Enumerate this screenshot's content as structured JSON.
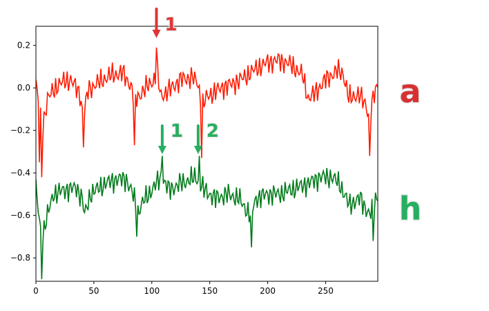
{
  "chart_data": {
    "type": "line",
    "title": "",
    "xlabel": "",
    "ylabel": "",
    "xlim": [
      0,
      295
    ],
    "ylim": [
      -0.91,
      0.29
    ],
    "xticks": [
      0,
      50,
      100,
      150,
      200,
      250
    ],
    "xtick_labels": [
      "0",
      "50",
      "100",
      "150",
      "200",
      "250"
    ],
    "yticks": [
      -0.8,
      -0.6,
      -0.4,
      -0.2,
      0.0,
      0.2
    ],
    "ytick_labels": [
      "−0.8",
      "−0.6",
      "−0.4",
      "−0.2",
      "0.0",
      "0.2"
    ],
    "grid": false,
    "legend": "none",
    "series": [
      {
        "color": "#ff1a00",
        "baseline": [
          [
            0,
            0.02
          ],
          [
            3,
            -0.1
          ],
          [
            6,
            -0.18
          ],
          [
            10,
            -0.05
          ],
          [
            20,
            0.02
          ],
          [
            30,
            0.04
          ],
          [
            38,
            -0.03
          ],
          [
            41,
            -0.14
          ],
          [
            45,
            -0.01
          ],
          [
            55,
            0.03
          ],
          [
            65,
            0.06
          ],
          [
            75,
            0.07
          ],
          [
            82,
            0.01
          ],
          [
            85,
            -0.06
          ],
          [
            90,
            -0.03
          ],
          [
            100,
            0.03
          ],
          [
            105,
            0.05
          ],
          [
            108,
            -0.04
          ],
          [
            115,
            -0.01
          ],
          [
            125,
            0.04
          ],
          [
            135,
            0.05
          ],
          [
            140,
            0.02
          ],
          [
            143,
            -0.09
          ],
          [
            148,
            -0.04
          ],
          [
            160,
            0.0
          ],
          [
            170,
            0.02
          ],
          [
            180,
            0.05
          ],
          [
            190,
            0.09
          ],
          [
            200,
            0.12
          ],
          [
            210,
            0.13
          ],
          [
            220,
            0.11
          ],
          [
            230,
            0.06
          ],
          [
            235,
            -0.05
          ],
          [
            240,
            -0.03
          ],
          [
            250,
            0.04
          ],
          [
            260,
            0.08
          ],
          [
            265,
            0.07
          ],
          [
            270,
            -0.05
          ],
          [
            278,
            -0.03
          ],
          [
            285,
            -0.08
          ],
          [
            288,
            -0.15
          ],
          [
            291,
            -0.05
          ],
          [
            295,
            0.02
          ]
        ],
        "peaks": [
          [
            3,
            -0.35
          ],
          [
            5,
            -0.42
          ],
          [
            41,
            -0.28
          ],
          [
            85,
            -0.27
          ],
          [
            104,
            0.19
          ],
          [
            143,
            -0.33
          ],
          [
            288,
            -0.32
          ]
        ],
        "amplitude": 0.065
      },
      {
        "color": "#007a1a",
        "baseline": [
          [
            0,
            -0.48
          ],
          [
            3,
            -0.62
          ],
          [
            5,
            -0.72
          ],
          [
            8,
            -0.64
          ],
          [
            15,
            -0.5
          ],
          [
            25,
            -0.48
          ],
          [
            35,
            -0.47
          ],
          [
            40,
            -0.52
          ],
          [
            42,
            -0.6
          ],
          [
            47,
            -0.5
          ],
          [
            60,
            -0.45
          ],
          [
            70,
            -0.43
          ],
          [
            78,
            -0.43
          ],
          [
            85,
            -0.52
          ],
          [
            87,
            -0.6
          ],
          [
            92,
            -0.54
          ],
          [
            100,
            -0.48
          ],
          [
            108,
            -0.42
          ],
          [
            115,
            -0.48
          ],
          [
            125,
            -0.45
          ],
          [
            138,
            -0.42
          ],
          [
            145,
            -0.48
          ],
          [
            155,
            -0.52
          ],
          [
            165,
            -0.5
          ],
          [
            175,
            -0.52
          ],
          [
            185,
            -0.6
          ],
          [
            190,
            -0.52
          ],
          [
            200,
            -0.5
          ],
          [
            210,
            -0.5
          ],
          [
            220,
            -0.48
          ],
          [
            235,
            -0.45
          ],
          [
            245,
            -0.42
          ],
          [
            255,
            -0.42
          ],
          [
            262,
            -0.45
          ],
          [
            270,
            -0.55
          ],
          [
            280,
            -0.52
          ],
          [
            288,
            -0.6
          ],
          [
            295,
            -0.5
          ]
        ],
        "peaks": [
          [
            5,
            -0.9
          ],
          [
            87,
            -0.7
          ],
          [
            109,
            -0.32
          ],
          [
            141,
            -0.32
          ],
          [
            186,
            -0.75
          ],
          [
            291,
            -0.72
          ]
        ],
        "amplitude": 0.065
      }
    ],
    "annotations": [
      {
        "label": "1",
        "color": "#e03434",
        "arrow_x": 104
      },
      {
        "label": "1",
        "color": "#27ae60",
        "arrow_x": 109
      },
      {
        "label": "2",
        "color": "#27ae60",
        "arrow_x": 140
      }
    ],
    "side_labels": [
      {
        "text": "a",
        "color": "#d63031"
      },
      {
        "text": "h",
        "color": "#27ae60"
      }
    ]
  }
}
